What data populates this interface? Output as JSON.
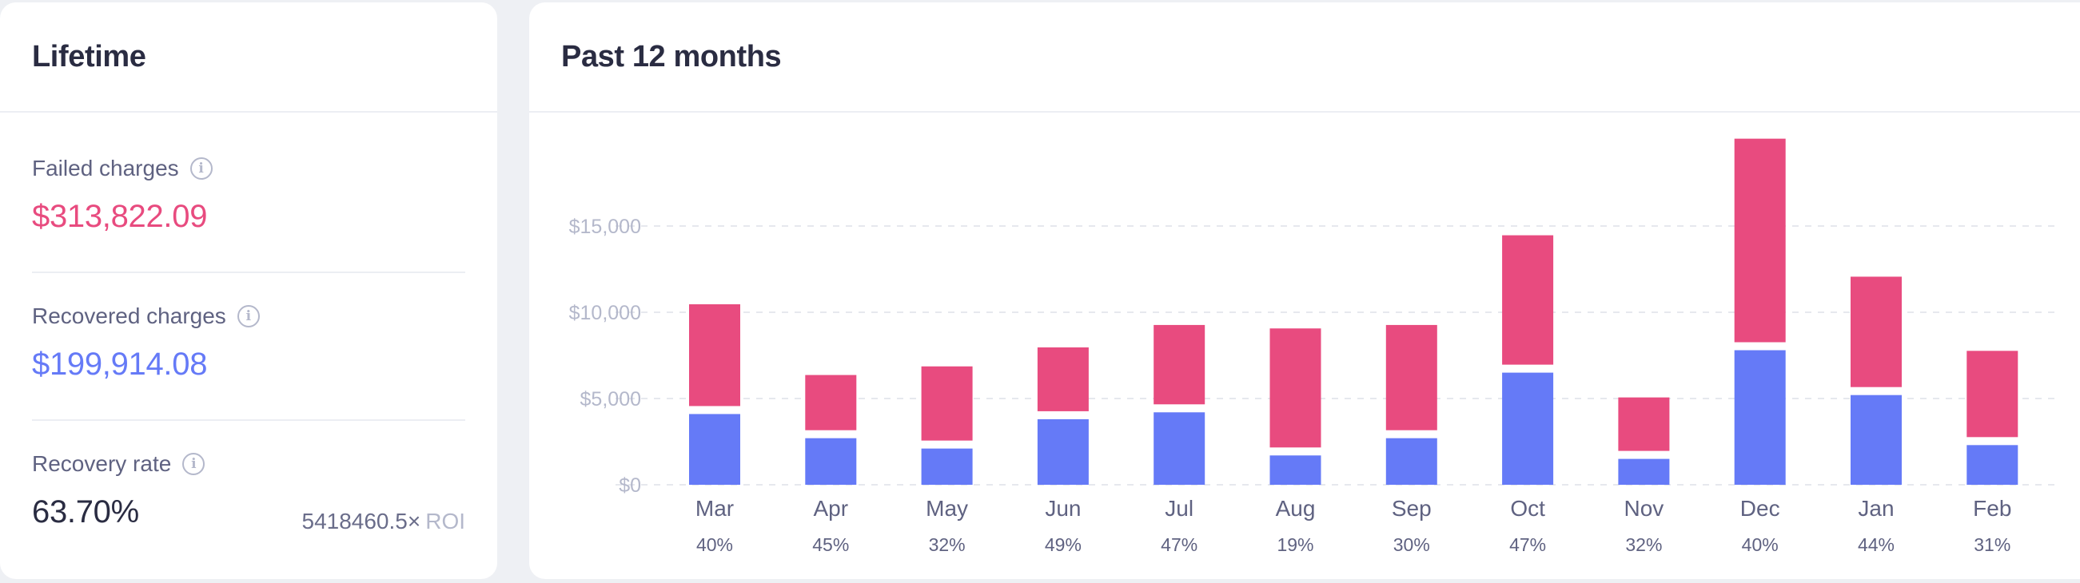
{
  "lifetime": {
    "title": "Lifetime",
    "failed_label": "Failed charges",
    "failed_value": "$313,822.09",
    "recovered_label": "Recovered charges",
    "recovered_value": "$199,914.08",
    "rate_label": "Recovery rate",
    "rate_value": "63.70%",
    "roi_value": "5418460.5×",
    "roi_label": "ROI",
    "info_icon": "info-icon"
  },
  "past": {
    "title": "Past 12 months"
  },
  "colors": {
    "failed": "#e84b7f",
    "recovered": "#657af7",
    "text_dark": "#2a2c42",
    "text_muted": "#5f6281",
    "tick": "#b4b8cb"
  },
  "chart_data": {
    "type": "bar",
    "stacked": true,
    "title": "Past 12 months",
    "categories": [
      "Mar",
      "Apr",
      "May",
      "Jun",
      "Jul",
      "Aug",
      "Sep",
      "Oct",
      "Nov",
      "Dec",
      "Jan",
      "Feb"
    ],
    "percent_labels": [
      "40%",
      "45%",
      "32%",
      "49%",
      "47%",
      "19%",
      "30%",
      "47%",
      "32%",
      "40%",
      "44%",
      "31%"
    ],
    "series": [
      {
        "values": [
          4100,
          2700,
          2100,
          3800,
          4200,
          1700,
          2700,
          6500,
          1500,
          7800,
          5200,
          2300
        ]
      },
      {
        "values": [
          5900,
          3200,
          4300,
          3700,
          4600,
          6900,
          6100,
          7500,
          3100,
          11800,
          6400,
          5000
        ]
      }
    ],
    "yticks": [
      0,
      5000,
      10000,
      15000
    ],
    "ytick_labels": [
      "$0",
      "$5,000",
      "$10,000",
      "$15,000"
    ],
    "ylim": [
      0,
      20000
    ],
    "grid": true
  }
}
